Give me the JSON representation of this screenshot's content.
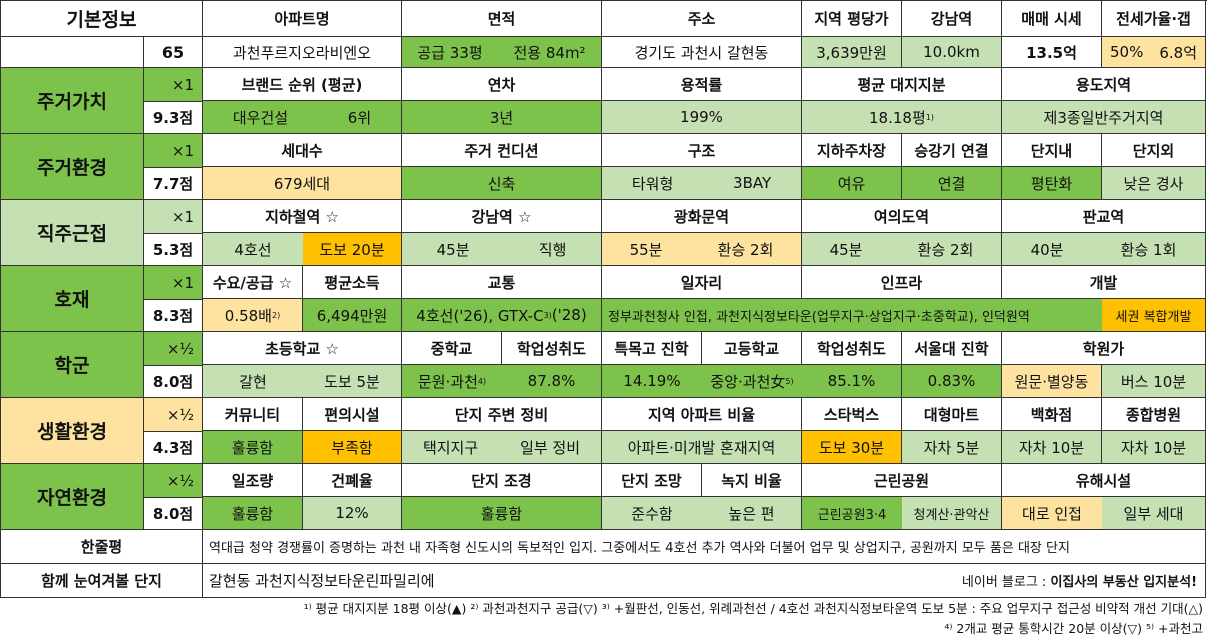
{
  "basic": {
    "label": "기본정보",
    "score": "65",
    "headers": [
      "아파트명",
      "면적",
      "주소",
      "지역 평당가",
      "강남역",
      "매매 시세",
      "전세가율·갭"
    ],
    "apt_name": "과천푸르지오라비엔오",
    "area_supply": "공급 33평",
    "area_exclusive": "전용 84m²",
    "address": "경기도 과천시 갈현동",
    "price_per_pyeong": "3,639만원",
    "gangnam_distance": "10.0km",
    "sale_price": "13.5억",
    "jeonse_ratio": "50%",
    "gap": "6.8억"
  },
  "value": {
    "label": "주거가치",
    "weight": "×1",
    "score": "9.3점",
    "headers": [
      "브랜드 순위 (평균)",
      "연차",
      "용적률",
      "평균 대지지분",
      "용도지역"
    ],
    "brand": "대우건설",
    "brand_rank": "6위",
    "age": "3년",
    "far": "199%",
    "land_share": "18.18평",
    "land_share_note": "1)",
    "zoning": "제3종일반주거지역"
  },
  "environment": {
    "label": "주거환경",
    "weight": "×1",
    "score": "7.7점",
    "headers": [
      "세대수",
      "주거 컨디션",
      "구조",
      "지하주차장",
      "승강기 연결",
      "단지내",
      "단지외"
    ],
    "households": "679세대",
    "condition": "신축",
    "structure_type": "타워형",
    "structure_bay": "3BAY",
    "parking": "여유",
    "elevator": "연결",
    "inside": "평탄화",
    "outside": "낮은 경사"
  },
  "commute": {
    "label": "직주근접",
    "weight": "×1",
    "score": "5.3점",
    "headers": [
      "지하철역 ☆",
      "강남역 ☆",
      "광화문역",
      "여의도역",
      "판교역"
    ],
    "subway_line": "4호선",
    "subway_walk": "도보 20분",
    "gangnam_time": "45분",
    "gangnam_route": "직행",
    "gwanghwamun_time": "55분",
    "gwanghwamun_route": "환승 2회",
    "yeouido_time": "45분",
    "yeouido_route": "환승 2회",
    "pangyo_time": "40분",
    "pangyo_route": "환승 1회"
  },
  "development": {
    "label": "호재",
    "weight": "×1",
    "score": "8.3점",
    "headers": [
      "수요/공급 ☆",
      "평균소득",
      "교통",
      "일자리",
      "인프라",
      "개발"
    ],
    "supply_demand": "0.58배",
    "supply_demand_note": "2)",
    "income": "6,494만원",
    "traffic": "4호선('26), GTX-C",
    "traffic_note": "3)",
    "traffic_tail": " ('28)",
    "jobs_infra": "정부과천청사 인접, 과천지식정보타운(업무지구·상업지구·초중학교), 인덕원역",
    "redevelopment": "세권 복합개발"
  },
  "school": {
    "label": "학군",
    "weight": "×½",
    "score": "8.0점",
    "headers": [
      "초등학교 ☆",
      "중학교",
      "학업성취도",
      "특목고 진학",
      "고등학교",
      "학업성취도",
      "서울대 진학",
      "학원가"
    ],
    "elementary": "갈현",
    "elementary_walk": "도보 5분",
    "middle": "문원·과천",
    "middle_note": "4)",
    "middle_score": "87.8%",
    "special_high": "14.19%",
    "high": "중앙·과천女",
    "high_note": "5)",
    "high_score": "85.1%",
    "snu": "0.83%",
    "academy": "원문·별양동",
    "academy_time": "버스 10분"
  },
  "living": {
    "label": "생활환경",
    "weight": "×½",
    "score": "4.3점",
    "headers": [
      "커뮤니티",
      "편의시설",
      "단지 주변 정비",
      "지역 아파트 비율",
      "스타벅스",
      "대형마트",
      "백화점",
      "종합병원"
    ],
    "community": "훌륭함",
    "convenience": "부족함",
    "site_area": "택지지구",
    "site_state": "일부 정비",
    "apt_ratio": "아파트·미개발 혼재지역",
    "starbucks": "도보 30분",
    "mart": "자차 5분",
    "dept_store": "자차 10분",
    "hospital": "자차 10분"
  },
  "nature": {
    "label": "자연환경",
    "weight": "×½",
    "score": "8.0점",
    "headers": [
      "일조량",
      "건폐율",
      "단지 조경",
      "단지 조망",
      "녹지 비율",
      "근린공원",
      "유해시설"
    ],
    "sunlight": "훌륭함",
    "bcr": "12%",
    "landscape": "훌륭함",
    "view": "준수함",
    "green_ratio": "높은 편",
    "park1": "근린공원3·4",
    "park2": "청계산·관악산",
    "hazard1": "대로 인접",
    "hazard2": "일부 세대"
  },
  "summary": {
    "label": "한줄평",
    "text": "역대급 청약 경쟁률이 증명하는 과천 내 자족형 신도시의 독보적인 입지. 그중에서도 4호선 추가 역사와 더불어 업무 및 상업지구, 공원까지 모두 품은 대장 단지"
  },
  "related": {
    "label": "함께 눈여겨볼 단지",
    "text": "갈현동 과천지식정보타운린파밀리에",
    "blog_prefix": "네이버 블로그 : ",
    "blog_name": "이집사의 부동산 입지분석!"
  },
  "footnotes": {
    "line1": "¹⁾ 평균 대지지분 18평 이상(▲) ²⁾ 과천과천지구 공급(▽) ³⁾ +월판선, 인동선, 위례과천선 / 4호선 과천지식정보타운역 도보 5분 : 주요 업무지구 접근성 비약적 개선 기대(△)",
    "line2": "⁴⁾ 2개교 평균 통학시간 20분 이상(▽) ⁵⁾ +과천고"
  },
  "colors": {
    "green": "#7dc24b",
    "light_green": "#c5e0b3",
    "orange": "#ffc000",
    "light_orange": "#fde39f"
  }
}
